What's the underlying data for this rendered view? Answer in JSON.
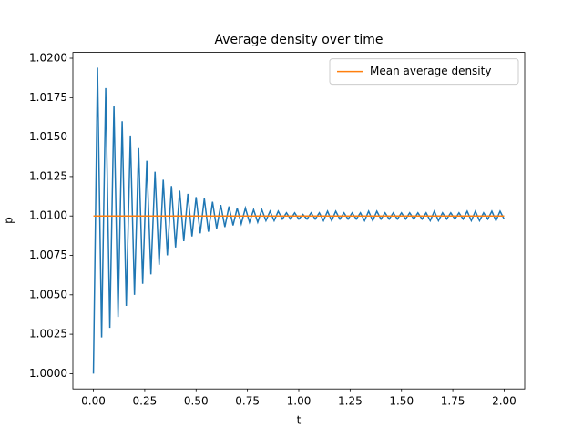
{
  "chart_data": {
    "type": "line",
    "title": "Average density over time",
    "x_label": "t",
    "y_label": "p",
    "series": [
      {
        "color": "#1f77b4",
        "x": [
          0,
          0.02,
          0.04,
          0.06,
          0.08,
          0.1,
          0.12,
          0.14,
          0.16,
          0.18,
          0.2,
          0.22,
          0.24,
          0.26,
          0.28,
          0.3,
          0.32,
          0.34,
          0.36,
          0.38,
          0.4,
          0.42,
          0.44,
          0.46,
          0.48,
          0.5,
          0.52,
          0.54,
          0.56,
          0.58,
          0.6,
          0.62,
          0.64,
          0.66,
          0.68,
          0.7,
          0.72,
          0.74,
          0.76,
          0.78,
          0.8,
          0.82,
          0.84,
          0.86,
          0.88,
          0.9,
          0.92,
          0.94,
          0.96,
          0.98,
          1.0,
          1.02,
          1.04,
          1.06,
          1.08,
          1.1,
          1.12,
          1.14,
          1.16,
          1.18,
          1.2,
          1.22,
          1.24,
          1.26,
          1.28,
          1.3,
          1.32,
          1.34,
          1.36,
          1.38,
          1.4,
          1.42,
          1.44,
          1.46,
          1.48,
          1.5,
          1.52,
          1.54,
          1.56,
          1.58,
          1.6,
          1.62,
          1.64,
          1.66,
          1.68,
          1.7,
          1.72,
          1.74,
          1.76,
          1.78,
          1.8,
          1.82,
          1.84,
          1.86,
          1.88,
          1.9,
          1.92,
          1.94,
          1.96,
          1.98,
          2.0
        ],
        "values": [
          1.0,
          1.0194,
          1.0023,
          1.0181,
          1.0029,
          1.017,
          1.0036,
          1.016,
          1.0043,
          1.0151,
          1.005,
          1.0143,
          1.0057,
          1.0135,
          1.0063,
          1.0128,
          1.0069,
          1.0123,
          1.0075,
          1.0119,
          1.008,
          1.0116,
          1.0084,
          1.0114,
          1.0087,
          1.0112,
          1.0089,
          1.0111,
          1.009,
          1.0109,
          1.0092,
          1.0107,
          1.0093,
          1.0106,
          1.0094,
          1.0105,
          1.0095,
          1.0105,
          1.0096,
          1.0104,
          1.0096,
          1.0104,
          1.0097,
          1.0103,
          1.0097,
          1.0103,
          1.0098,
          1.0102,
          1.0098,
          1.0102,
          1.0098,
          1.0101,
          1.0098,
          1.0102,
          1.0098,
          1.0102,
          1.0097,
          1.0103,
          1.0097,
          1.0103,
          1.0098,
          1.0102,
          1.0098,
          1.0102,
          1.0098,
          1.0102,
          1.0097,
          1.0103,
          1.0097,
          1.0103,
          1.0098,
          1.0102,
          1.0098,
          1.0102,
          1.0098,
          1.0102,
          1.0098,
          1.0102,
          1.0098,
          1.0102,
          1.0098,
          1.0102,
          1.0097,
          1.0103,
          1.0097,
          1.0102,
          1.0098,
          1.0102,
          1.0098,
          1.0102,
          1.0098,
          1.0103,
          1.0097,
          1.0103,
          1.0097,
          1.0102,
          1.0098,
          1.0103,
          1.0097,
          1.0103,
          1.0098
        ]
      },
      {
        "name": "Mean average density",
        "color": "#ff7f0e",
        "x": [
          0,
          2.0
        ],
        "values": [
          1.01,
          1.01
        ]
      }
    ],
    "xlim": [
      -0.1,
      2.1
    ],
    "ylim": [
      0.99903,
      1.02037
    ],
    "xticks": [
      {
        "value": 0,
        "label": "0.00"
      },
      {
        "value": 0.25,
        "label": "0.25"
      },
      {
        "value": 0.5,
        "label": "0.50"
      },
      {
        "value": 0.75,
        "label": "0.75"
      },
      {
        "value": 1.0,
        "label": "1.00"
      },
      {
        "value": 1.25,
        "label": "1.25"
      },
      {
        "value": 1.5,
        "label": "1.50"
      },
      {
        "value": 1.75,
        "label": "1.75"
      },
      {
        "value": 2.0,
        "label": "2.00"
      }
    ],
    "yticks": [
      {
        "value": 1.0,
        "label": "1.0000"
      },
      {
        "value": 1.0025,
        "label": "1.0025"
      },
      {
        "value": 1.005,
        "label": "1.0050"
      },
      {
        "value": 1.0075,
        "label": "1.0075"
      },
      {
        "value": 1.01,
        "label": "1.0100"
      },
      {
        "value": 1.0125,
        "label": "1.0125"
      },
      {
        "value": 1.015,
        "label": "1.0150"
      },
      {
        "value": 1.0175,
        "label": "1.0175"
      },
      {
        "value": 1.02,
        "label": "1.0200"
      }
    ],
    "legend": "upper right"
  }
}
